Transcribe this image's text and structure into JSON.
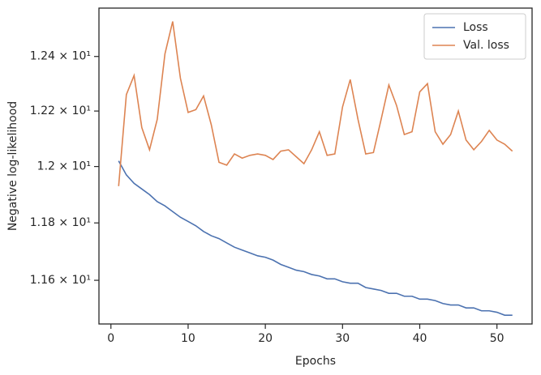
{
  "chart_data": {
    "type": "line",
    "xlabel": "Epochs",
    "ylabel": "Negative log-likelihood",
    "x": [
      1,
      2,
      3,
      4,
      5,
      6,
      7,
      8,
      9,
      10,
      11,
      12,
      13,
      14,
      15,
      16,
      17,
      18,
      19,
      20,
      21,
      22,
      23,
      24,
      25,
      26,
      27,
      28,
      29,
      30,
      31,
      32,
      33,
      34,
      35,
      36,
      37,
      38,
      39,
      40,
      41,
      42,
      43,
      44,
      45,
      46,
      47,
      48,
      49,
      50,
      51,
      52
    ],
    "series": [
      {
        "name": "Loss",
        "color": "#4c72b0",
        "values": [
          12.02,
          11.97,
          11.94,
          11.92,
          11.9,
          11.875,
          11.86,
          11.84,
          11.82,
          11.805,
          11.79,
          11.77,
          11.755,
          11.745,
          11.73,
          11.715,
          11.705,
          11.695,
          11.685,
          11.68,
          11.67,
          11.655,
          11.645,
          11.635,
          11.63,
          11.62,
          11.615,
          11.605,
          11.605,
          11.595,
          11.59,
          11.59,
          11.575,
          11.57,
          11.565,
          11.555,
          11.555,
          11.545,
          11.545,
          11.535,
          11.535,
          11.53,
          11.52,
          11.515,
          11.515,
          11.505,
          11.505,
          11.495,
          11.495,
          11.49,
          11.48,
          11.48
        ]
      },
      {
        "name": "Val. loss",
        "color": "#dd8452",
        "values": [
          11.93,
          12.26,
          12.33,
          12.14,
          12.06,
          12.17,
          12.41,
          12.53,
          12.32,
          12.195,
          12.205,
          12.255,
          12.15,
          12.015,
          12.005,
          12.045,
          12.03,
          12.04,
          12.045,
          12.04,
          12.025,
          12.055,
          12.06,
          12.035,
          12.01,
          12.06,
          12.125,
          12.04,
          12.045,
          12.215,
          12.315,
          12.17,
          12.045,
          12.05,
          12.17,
          12.295,
          12.22,
          12.115,
          12.125,
          12.27,
          12.3,
          12.125,
          12.08,
          12.115,
          12.2,
          12.095,
          12.06,
          12.09,
          12.13,
          12.095,
          12.08,
          12.055
        ]
      }
    ],
    "xlim": [
      -1.55,
      54.55
    ],
    "xticks": [
      0,
      10,
      20,
      30,
      40,
      50
    ],
    "ylim": [
      11.45,
      12.58
    ],
    "ylog": true,
    "yticks": [
      {
        "value": 11.6,
        "label": "1.16 × 10¹"
      },
      {
        "value": 11.8,
        "label": "1.18 × 10¹"
      },
      {
        "value": 12,
        "label": "1.2 × 10¹"
      },
      {
        "value": 12.2,
        "label": "1.22 × 10¹"
      },
      {
        "value": 12.4,
        "label": "1.24 × 10¹"
      }
    ],
    "legend": "upper right",
    "grid": false
  }
}
